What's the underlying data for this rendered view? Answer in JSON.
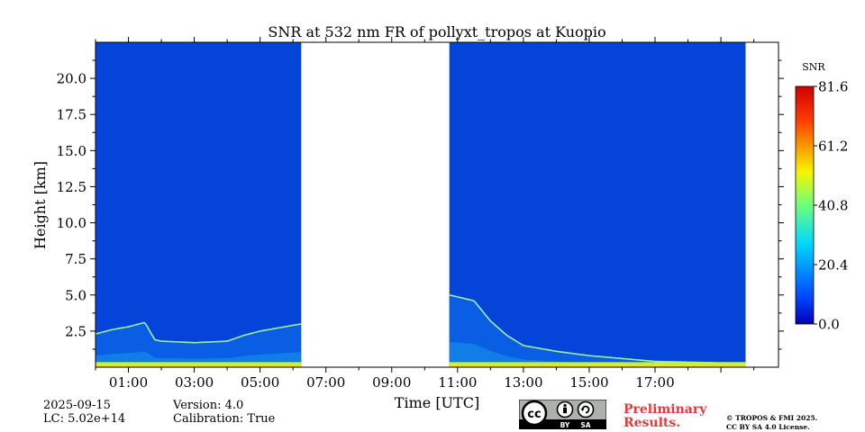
{
  "chart_data": {
    "type": "heatmap",
    "title": "SNR at 532 nm FR of pollyxt_tropos at Kuopio",
    "xlabel": "Time [UTC]",
    "ylabel": "Height [km]",
    "xlim_hours": [
      0.0,
      20.75
    ],
    "ylim_km": [
      0.0,
      22.5
    ],
    "x_tick_labels": [
      "01:00",
      "03:00",
      "05:00",
      "07:00",
      "09:00",
      "11:00",
      "13:00",
      "15:00",
      "17:00"
    ],
    "y_ticks": [
      2.5,
      5.0,
      7.5,
      10.0,
      12.5,
      15.0,
      17.5,
      20.0
    ],
    "y_tick_labels": [
      "2.5",
      "5.0",
      "7.5",
      "10.0",
      "12.5",
      "15.0",
      "17.5",
      "20.0"
    ],
    "data_segments_hours": [
      [
        0.0,
        6.25
      ],
      [
        10.75,
        19.75
      ]
    ],
    "boundary_layer_top_km": {
      "hours": [
        0.0,
        0.5,
        1.0,
        1.5,
        1.8,
        2.0,
        3.0,
        4.0,
        4.5,
        5.0,
        6.0,
        6.25
      ],
      "height": [
        2.3,
        2.6,
        2.8,
        3.1,
        1.9,
        1.8,
        1.7,
        1.8,
        2.2,
        2.5,
        2.9,
        3.0
      ]
    },
    "aerosol_layer_top_km": {
      "hours": [
        10.75,
        11.5,
        12.0,
        12.5,
        13.0,
        14.0,
        15.0,
        16.0,
        17.0,
        18.0,
        19.0,
        19.75
      ],
      "height": [
        5.0,
        4.6,
        3.2,
        2.2,
        1.5,
        1.1,
        0.8,
        0.6,
        0.4,
        0.35,
        0.3,
        0.3
      ]
    },
    "colorbar": {
      "label": "SNR",
      "min": 0.0,
      "max": 81.6,
      "tick_labels": [
        "0.0",
        "20.4",
        "40.8",
        "61.2",
        "81.6"
      ],
      "colormap": "jet"
    },
    "background_color": "#0444d8"
  },
  "footer": {
    "date": "2025-09-15",
    "lc": "LC: 5.02e+14",
    "version": "Version: 4.0",
    "calibration": "Calibration: True",
    "cc_icon": "cc-by-sa-license-icon",
    "preliminary_line1": "Preliminary",
    "preliminary_line2": "Results.",
    "copyright_line1": "© TROPOS & FMI 2025.",
    "copyright_line2": "CC BY SA 4.0 License."
  }
}
